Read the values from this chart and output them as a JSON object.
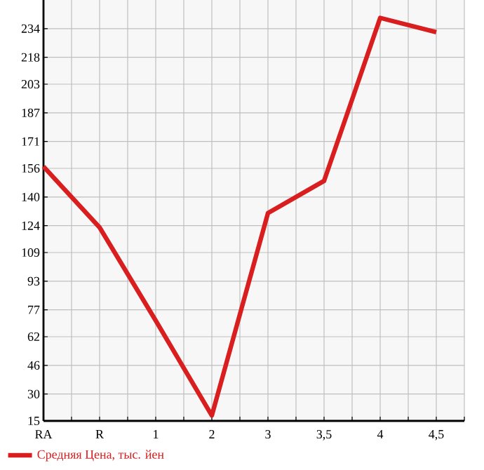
{
  "chart_data": {
    "type": "line",
    "categories": [
      "RA",
      "R",
      "1",
      "2",
      "3",
      "3,5",
      "4",
      "4,5"
    ],
    "series": [
      {
        "name": "Средняя Цена, тыс. йен",
        "color": "#d81e1e",
        "values": [
          157,
          123,
          71,
          18,
          131,
          149,
          240,
          232
        ]
      }
    ],
    "ylim": [
      15,
      250
    ],
    "yticks": [
      15,
      30,
      46,
      62,
      77,
      93,
      109,
      124,
      140,
      156,
      171,
      187,
      203,
      218,
      234
    ],
    "grid": true,
    "legend": "bottom left",
    "marker": "none",
    "line_style": "solid"
  }
}
